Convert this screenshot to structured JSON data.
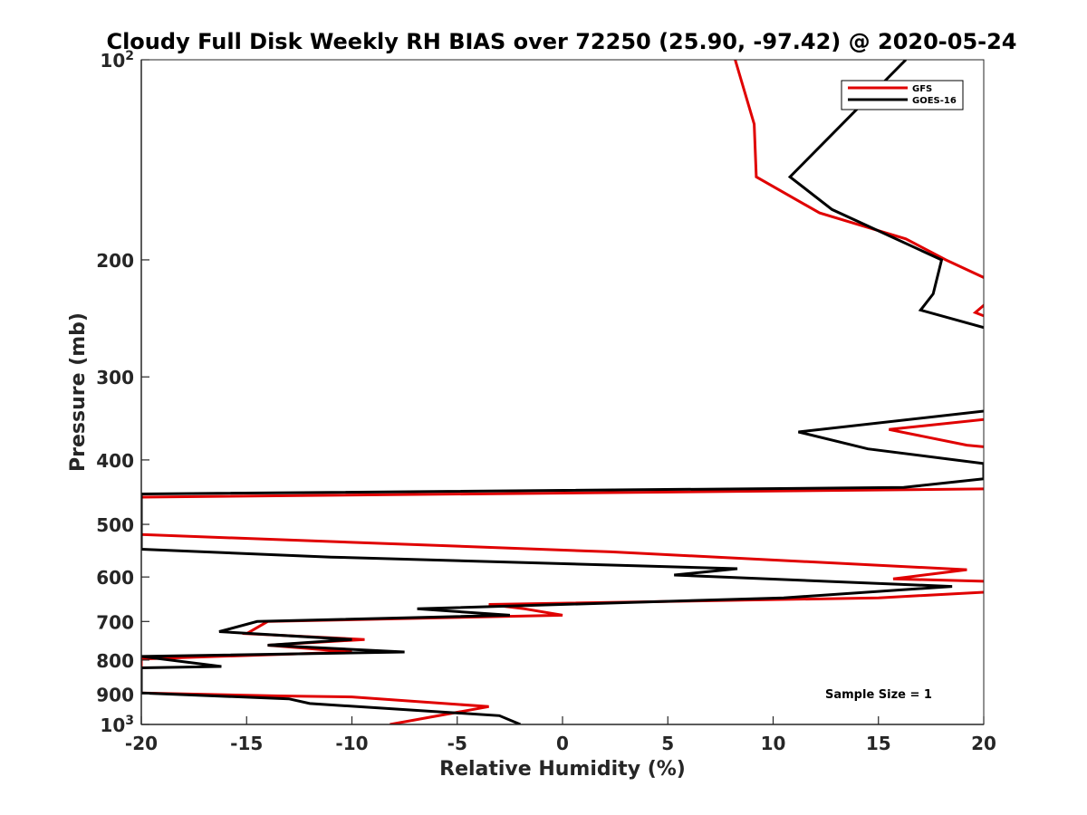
{
  "chart_data": {
    "type": "line",
    "title": "Cloudy Full Disk Weekly RH BIAS over 72250 (25.90, -97.42) @ 2020-05-24",
    "xlabel": "Relative Humidity (%)",
    "ylabel": "Pressure (mb)",
    "xlim": [
      -20,
      20
    ],
    "ylim": [
      100,
      1000
    ],
    "yscale": "log",
    "y_reversed": true,
    "x_ticks": [
      -20,
      -15,
      -10,
      -5,
      0,
      5,
      10,
      15,
      20
    ],
    "x_tick_labels": [
      "-20",
      "-15",
      "-10",
      "-5",
      "0",
      "5",
      "10",
      "15",
      "20"
    ],
    "y_ticks": [
      100,
      200,
      300,
      400,
      500,
      600,
      700,
      800,
      900,
      1000
    ],
    "y_tick_labels": [
      {
        "base": "10",
        "exp": "2"
      },
      {
        "text": "200"
      },
      {
        "text": "300"
      },
      {
        "text": "400"
      },
      {
        "text": "500"
      },
      {
        "text": "600"
      },
      {
        "text": "700"
      },
      {
        "text": "800"
      },
      {
        "text": "900"
      },
      {
        "base": "10",
        "exp": "3"
      }
    ],
    "grid": false,
    "legend_position": "top-right",
    "annotation": "Sample Size = 1",
    "series": [
      {
        "name": "GFS",
        "color": "#e00000",
        "points": [
          [
            8.2,
            100
          ],
          [
            9.1,
            125
          ],
          [
            9.2,
            150
          ],
          [
            12.2,
            170
          ],
          [
            16.3,
            186
          ],
          [
            18.2,
            200
          ],
          [
            21.0,
            220
          ],
          [
            19.6,
            240
          ],
          [
            21.0,
            250
          ],
          [
            21.0,
            345
          ],
          [
            15.5,
            360
          ],
          [
            19.2,
            380
          ],
          [
            21.0,
            385
          ],
          [
            21.0,
            442
          ],
          [
            -20.0,
            455
          ],
          [
            -20.0,
            518
          ],
          [
            2.3,
            550
          ],
          [
            19.2,
            585
          ],
          [
            15.7,
            604
          ],
          [
            21.0,
            610
          ],
          [
            21.0,
            630
          ],
          [
            15.0,
            645
          ],
          [
            -3.5,
            660
          ],
          [
            -1.8,
            670
          ],
          [
            0.0,
            685
          ],
          [
            -14.0,
            700
          ],
          [
            -15.0,
            730
          ],
          [
            -9.4,
            745
          ],
          [
            -14.0,
            760
          ],
          [
            -10.0,
            778
          ],
          [
            -20.0,
            797
          ],
          [
            -20.0,
            820
          ],
          [
            -21.0,
            828
          ],
          [
            -20.0,
            897
          ],
          [
            -13.5,
            906
          ],
          [
            -10.0,
            909
          ],
          [
            -3.5,
            940
          ],
          [
            -8.2,
            1000
          ]
        ]
      },
      {
        "name": "GOES-16",
        "color": "#000000",
        "points": [
          [
            16.3,
            100
          ],
          [
            10.8,
            150
          ],
          [
            12.8,
            168
          ],
          [
            18.0,
            200
          ],
          [
            17.6,
            225
          ],
          [
            17.0,
            238
          ],
          [
            21.0,
            258
          ],
          [
            21.0,
            335
          ],
          [
            11.2,
            363
          ],
          [
            14.5,
            385
          ],
          [
            20.0,
            405
          ],
          [
            20.0,
            427
          ],
          [
            16.2,
            440
          ],
          [
            -20.0,
            450
          ],
          [
            -20.0,
            545
          ],
          [
            -11.0,
            560
          ],
          [
            8.3,
            583
          ],
          [
            5.3,
            596
          ],
          [
            18.5,
            620
          ],
          [
            10.5,
            645
          ],
          [
            -6.9,
            670
          ],
          [
            -2.5,
            685
          ],
          [
            -14.5,
            700
          ],
          [
            -16.3,
            725
          ],
          [
            -10.0,
            745
          ],
          [
            -14.0,
            760
          ],
          [
            -7.5,
            778
          ],
          [
            -20.0,
            790
          ],
          [
            -16.2,
            818
          ],
          [
            -20.0,
            822
          ],
          [
            -20.0,
            897
          ],
          [
            -13.0,
            915
          ],
          [
            -12.0,
            930
          ],
          [
            -3.0,
            970
          ],
          [
            -2.0,
            1000
          ]
        ]
      }
    ]
  }
}
